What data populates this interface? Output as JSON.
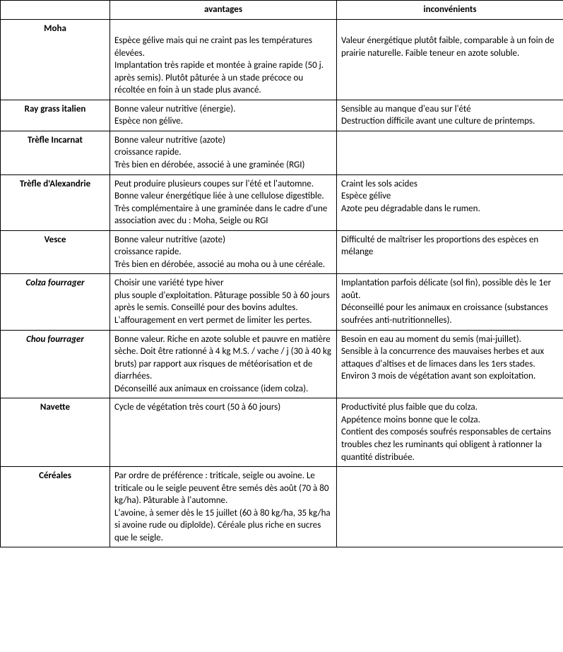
{
  "table": {
    "type": "table",
    "background_color": "#ffffff",
    "border_color": "#000000",
    "text_color": "#000000",
    "font_family": "Calibri, Arial, sans-serif",
    "font_size_pt": 10,
    "columns": {
      "name": "",
      "advantages": "avantages",
      "drawbacks": "inconvénients"
    },
    "rows": [
      {
        "name": "Moha",
        "name_italic": false,
        "advantages": "Espèce gélive mais qui ne craint pas les températures élevées.\nImplantation très rapide et montée à graine rapide (50 j. après semis). Plutôt pâturée à un stade précoce ou récoltée en foin à un stade plus avancé.",
        "drawbacks": "Valeur énergétique plutôt faible, comparable à un foin de prairie naturelle. Faible teneur en azote soluble."
      },
      {
        "name": "Ray grass italien",
        "name_italic": false,
        "advantages": "Bonne valeur nutritive (énergie).\nEspèce non gélive.",
        "drawbacks": "Sensible au manque d'eau sur l'été\nDestruction difficile  avant une culture de printemps."
      },
      {
        "name": "Trèfle Incarnat",
        "name_italic": false,
        "advantages": "Bonne valeur nutritive (azote)\ncroissance rapide.\nTrès bien en dérobée, associé à une graminée (RGI)",
        "drawbacks": ""
      },
      {
        "name": "Trèfle d'Alexandrie",
        "name_italic": false,
        "advantages": "Peut produire plusieurs coupes sur l'été et l'automne.\nBonne valeur énergétique liée à une cellulose digestible.\nTrès complémentaire à une graminée dans le cadre d'une association avec du : Moha, Seigle ou RGI",
        "drawbacks": "Craint les sols acides\nEspèce gélive\nAzote peu dégradable dans le rumen."
      },
      {
        "name": "Vesce",
        "name_italic": false,
        "advantages": "Bonne valeur nutritive (azote)\ncroissance rapide.\nTrès bien en dérobée, associé au moha ou à une céréale.",
        "drawbacks": "Difficulté de maîtriser les proportions des espèces en mélange"
      },
      {
        "name": "Colza fourrager",
        "name_italic": true,
        "advantages": "Choisir une variété type hiver\nplus souple d'exploitation. Pâturage possible 50 à 60 jours après le semis. Conseillé pour des bovins adultes.\nL'affouragement en vert permet de limiter les pertes.",
        "drawbacks": "Implantation parfois délicate (sol fin), possible dès le 1er août.\nDéconseillé pour les animaux en croissance (substances soufrées anti-nutritionnelles)."
      },
      {
        "name": "Chou fourrager",
        "name_italic": true,
        "advantages": "Bonne valeur. Riche en azote soluble et pauvre en matière sèche. Doit être rationné à 4 kg M.S. / vache / j (30 à 40 kg bruts) par rapport aux risques de météorisation et de diarrhées.\nDéconseillé aux animaux en croissance (idem colza).",
        "drawbacks": "Besoin en eau au moment du semis (mai-juillet).\nSensible à la concurrence des mauvaises herbes et aux attaques d'altises et de limaces dans les 1ers stades.\nEnviron 3 mois de végétation avant son exploitation."
      },
      {
        "name": "Navette",
        "name_italic": false,
        "advantages": "Cycle de végétation très court (50 à 60 jours)",
        "drawbacks": "Productivité plus faible que du colza.\nAppétence moins bonne que le colza.\nContient des composés soufrés responsables de certains troubles chez les ruminants qui obligent à rationner la quantité distribuée."
      },
      {
        "name": "Céréales",
        "name_italic": false,
        "advantages": "Par ordre de préférence : triticale, seigle ou avoine. Le triticale ou le seigle peuvent être semés dès août (70 à 80 kg/ha). Pâturable à l'automne.\nL'avoine, à semer dès le 15 juillet (60 à 80 kg/ha, 35 kg/ha si avoine rude ou diploïde). Céréale plus riche en sucres que le seigle.",
        "drawbacks": ""
      }
    ]
  }
}
